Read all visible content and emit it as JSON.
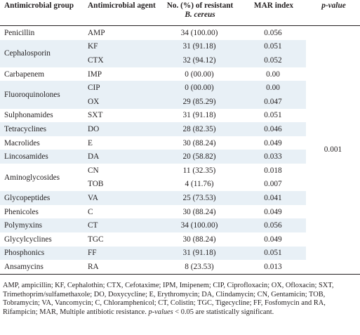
{
  "headers": {
    "group": "Antimicrobial group",
    "agent": "Antimicrobial agent",
    "resistant_prefix": "No. (%) of resistant",
    "resistant_species": "B. cereus",
    "mar": "MAR index",
    "pvalue": "p-value"
  },
  "p_value": "0.001",
  "rows": [
    {
      "group": "Penicillin",
      "agent": "AMP",
      "n": "34 (100.00)",
      "mar": "0.056"
    },
    {
      "group": "Cephalosporin",
      "agent": "KF",
      "n": "31 (91.18)",
      "mar": "0.051"
    },
    {
      "agent": "CTX",
      "n": "32 (94.12)",
      "mar": "0.052"
    },
    {
      "group": "Carbapenem",
      "agent": "IMP",
      "n": "0 (00.00)",
      "mar": "0.00"
    },
    {
      "group": "Fluoroquinolones",
      "agent": "CIP",
      "n": "0 (00.00)",
      "mar": "0.00"
    },
    {
      "agent": "OX",
      "n": "29 (85.29)",
      "mar": "0.047"
    },
    {
      "group": "Sulphonamides",
      "agent": "SXT",
      "n": "31 (91.18)",
      "mar": "0.051"
    },
    {
      "group": "Tetracyclines",
      "agent": "DO",
      "n": "28 (82.35)",
      "mar": "0.046"
    },
    {
      "group": "Macrolides",
      "agent": "E",
      "n": "30 (88.24)",
      "mar": "0.049"
    },
    {
      "group": "Lincosamides",
      "agent": "DA",
      "n": "20 (58.82)",
      "mar": "0.033"
    },
    {
      "group": "Aminoglycosides",
      "agent": "CN",
      "n": "11 (32.35)",
      "mar": "0.018"
    },
    {
      "agent": "TOB",
      "n": "4 (11.76)",
      "mar": "0.007"
    },
    {
      "group": "Glycopeptides",
      "agent": "VA",
      "n": "25 (73.53)",
      "mar": "0.041"
    },
    {
      "group": "Phenicoles",
      "agent": "C",
      "n": "30 (88.24)",
      "mar": "0.049"
    },
    {
      "group": "Polymyxins",
      "agent": "CT",
      "n": "34 (100.00)",
      "mar": "0.056"
    },
    {
      "group": "Glycylcyclines",
      "agent": "TGC",
      "n": "30 (88.24)",
      "mar": "0.049"
    },
    {
      "group": "Phosphonics",
      "agent": "FF",
      "n": "31 (91.18)",
      "mar": "0.051"
    },
    {
      "group": "Ansamycins",
      "agent": "RA",
      "n": "8 (23.53)",
      "mar": "0.013"
    }
  ],
  "footnote": {
    "abbrev": "AMP, ampicillin; KF, Cephalothin; CTX, Cefotaxime; IPM, Imipenem; CIP, Ciprofloxacin; OX, Ofloxacin; SXT, Trimethoprim/sulfamethaxole; DO, Doxycycline; E, Erythromycin; DA, Clindamycin; CN, Gentamicin; TOB, Tobramycin; VA, Vancomycin; C, Chloramphenicol; CT, Colistin; TGC, Tigecycline; FF, Fosfomycin and RA, Rifampicin; MAR, Multiple antibiotic resistance.",
    "p_term": "p-values",
    "p_rest": " < 0.05 are statistically significant."
  },
  "colors": {
    "stripe": "#e8f0f6",
    "text": "#231f20"
  }
}
